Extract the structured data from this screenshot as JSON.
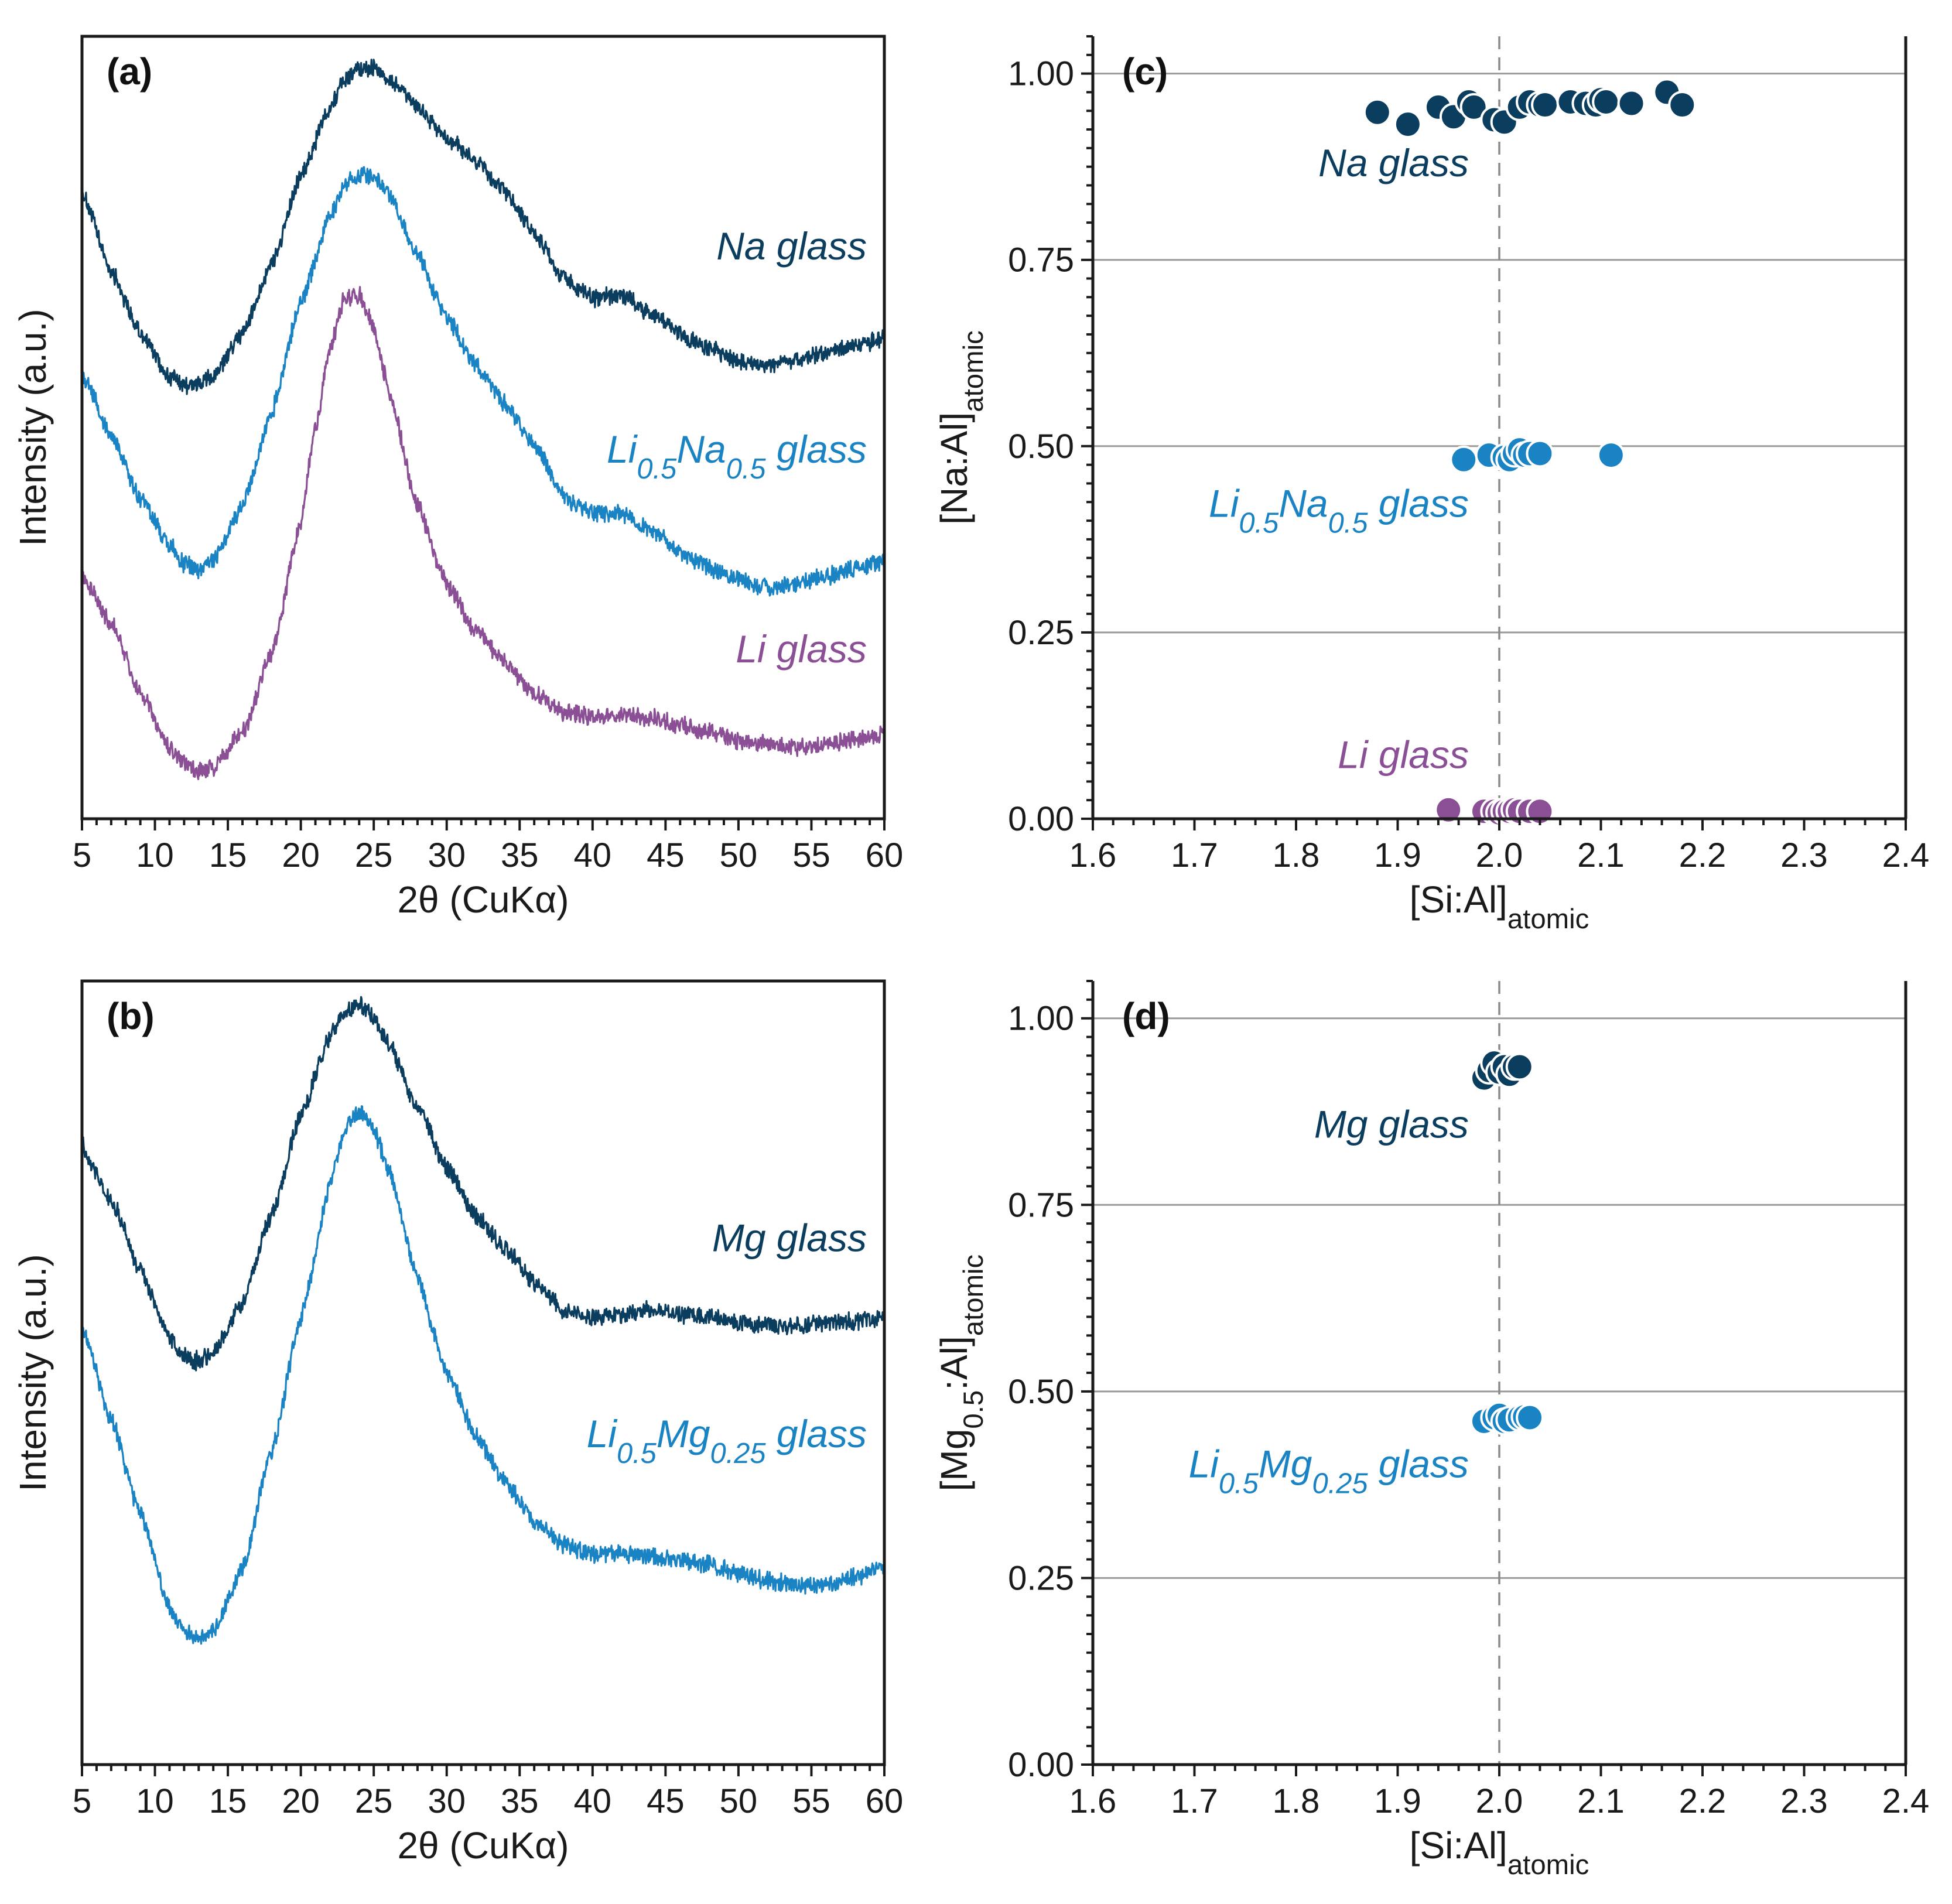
{
  "colors": {
    "dark_navy": "#0b3d5e",
    "mid_blue": "#1a83c4",
    "purple": "#8a4f94"
  },
  "chart_data": [
    {
      "id": "a",
      "panel_label": "(a)",
      "type": "line",
      "xlabel": "2θ (CuKα)",
      "ylabel": "Intensity (a.u.)",
      "xlim": [
        5,
        60
      ],
      "ylim": [
        0,
        1
      ],
      "xticks": [
        5,
        10,
        15,
        20,
        25,
        30,
        35,
        40,
        45,
        50,
        55,
        60
      ],
      "series": [
        {
          "name": "Na glass",
          "color": "#0b3d5e",
          "label_pos": [
            52,
            0.715
          ],
          "label_parts": [
            {
              "t": "Na glass",
              "sub": false
            }
          ],
          "x": [
            5,
            7,
            9,
            11,
            12,
            13,
            14,
            16,
            18,
            20,
            22,
            23,
            24,
            25,
            26,
            28,
            30,
            32,
            34,
            36,
            38,
            40,
            42,
            44,
            46,
            48,
            50,
            52,
            54,
            56,
            58,
            60
          ],
          "values": [
            0.8,
            0.7,
            0.62,
            0.565,
            0.555,
            0.555,
            0.565,
            0.62,
            0.71,
            0.82,
            0.91,
            0.945,
            0.96,
            0.96,
            0.945,
            0.91,
            0.87,
            0.84,
            0.8,
            0.75,
            0.69,
            0.665,
            0.67,
            0.645,
            0.62,
            0.6,
            0.585,
            0.58,
            0.585,
            0.595,
            0.605,
            0.615
          ]
        },
        {
          "name": "Li0.5Na0.5 glass",
          "color": "#1a83c4",
          "label_pos": [
            48,
            0.455
          ],
          "label_parts": [
            {
              "t": "Li",
              "sub": false
            },
            {
              "t": "0.5",
              "sub": true
            },
            {
              "t": "Na",
              "sub": false
            },
            {
              "t": "0.5",
              "sub": true
            },
            {
              "t": " glass",
              "sub": false
            }
          ],
          "x": [
            5,
            7,
            9,
            11,
            12,
            13,
            14,
            16,
            18,
            20,
            22,
            23,
            24,
            25,
            26,
            28,
            30,
            32,
            34,
            36,
            38,
            40,
            42,
            44,
            46,
            48,
            50,
            52,
            54,
            56,
            58,
            60
          ],
          "values": [
            0.57,
            0.49,
            0.41,
            0.35,
            0.325,
            0.32,
            0.33,
            0.4,
            0.52,
            0.66,
            0.77,
            0.81,
            0.825,
            0.82,
            0.8,
            0.72,
            0.64,
            0.58,
            0.53,
            0.48,
            0.41,
            0.39,
            0.39,
            0.37,
            0.34,
            0.32,
            0.305,
            0.295,
            0.3,
            0.31,
            0.32,
            0.33
          ]
        },
        {
          "name": "Li glass",
          "color": "#8a4f94",
          "label_pos": [
            52,
            0.2
          ],
          "label_parts": [
            {
              "t": "Li glass",
              "sub": false
            }
          ],
          "x": [
            5,
            7,
            9,
            11,
            12,
            13,
            14,
            16,
            18,
            20,
            21,
            22,
            23,
            24,
            25,
            26,
            28,
            30,
            32,
            34,
            36,
            38,
            40,
            42,
            44,
            46,
            48,
            50,
            52,
            54,
            56,
            58,
            60
          ],
          "values": [
            0.31,
            0.25,
            0.16,
            0.09,
            0.07,
            0.06,
            0.065,
            0.11,
            0.21,
            0.38,
            0.5,
            0.6,
            0.665,
            0.67,
            0.63,
            0.55,
            0.4,
            0.3,
            0.24,
            0.2,
            0.16,
            0.135,
            0.13,
            0.135,
            0.13,
            0.12,
            0.11,
            0.1,
            0.095,
            0.09,
            0.095,
            0.1,
            0.11
          ]
        }
      ]
    },
    {
      "id": "b",
      "panel_label": "(b)",
      "type": "line",
      "xlabel": "2θ (CuKα)",
      "ylabel": "Intensity (a.u.)",
      "xlim": [
        5,
        60
      ],
      "ylim": [
        0,
        1
      ],
      "xticks": [
        5,
        10,
        15,
        20,
        25,
        30,
        35,
        40,
        45,
        50,
        55,
        60
      ],
      "series": [
        {
          "name": "Mg glass",
          "color": "#0b3d5e",
          "label_pos": [
            52,
            0.655
          ],
          "label_parts": [
            {
              "t": "Mg glass",
              "sub": false
            }
          ],
          "x": [
            5,
            7,
            9,
            11,
            12,
            13,
            14,
            16,
            18,
            20,
            22,
            23,
            24,
            25,
            26,
            28,
            30,
            32,
            34,
            36,
            38,
            40,
            42,
            44,
            46,
            48,
            50,
            52,
            54,
            56,
            58,
            60
          ],
          "values": [
            0.79,
            0.72,
            0.63,
            0.545,
            0.52,
            0.515,
            0.525,
            0.59,
            0.7,
            0.83,
            0.93,
            0.96,
            0.97,
            0.955,
            0.92,
            0.84,
            0.76,
            0.7,
            0.66,
            0.615,
            0.58,
            0.57,
            0.575,
            0.58,
            0.575,
            0.57,
            0.565,
            0.56,
            0.56,
            0.565,
            0.565,
            0.57
          ]
        },
        {
          "name": "Li0.5Mg0.25 glass",
          "color": "#1a83c4",
          "label_pos": [
            48,
            0.405
          ],
          "label_parts": [
            {
              "t": "Li",
              "sub": false
            },
            {
              "t": "0.5",
              "sub": true
            },
            {
              "t": "Mg",
              "sub": false
            },
            {
              "t": "0.25",
              "sub": true
            },
            {
              "t": " glass",
              "sub": false
            }
          ],
          "x": [
            5,
            7,
            9,
            11,
            12,
            13,
            14,
            16,
            18,
            20,
            22,
            23,
            24,
            25,
            26,
            28,
            30,
            32,
            34,
            36,
            38,
            40,
            42,
            44,
            46,
            48,
            50,
            52,
            54,
            56,
            58,
            60
          ],
          "values": [
            0.56,
            0.44,
            0.32,
            0.2,
            0.17,
            0.16,
            0.17,
            0.25,
            0.4,
            0.57,
            0.74,
            0.81,
            0.835,
            0.81,
            0.76,
            0.62,
            0.5,
            0.42,
            0.36,
            0.31,
            0.28,
            0.27,
            0.27,
            0.265,
            0.26,
            0.255,
            0.245,
            0.235,
            0.23,
            0.23,
            0.24,
            0.25
          ]
        }
      ]
    },
    {
      "id": "c",
      "panel_label": "(c)",
      "type": "scatter",
      "xlabel": "[Si:Al]atomic",
      "xlabel_parts": [
        {
          "t": "[Si:Al]",
          "sub": false
        },
        {
          "t": "atomic",
          "sub": true
        }
      ],
      "ylabel": "[Na:Al]atomic",
      "ylabel_parts": [
        {
          "t": "[Na:Al]",
          "sub": false
        },
        {
          "t": "atomic",
          "sub": true
        }
      ],
      "xlim": [
        1.6,
        2.4
      ],
      "ylim": [
        0,
        1.05
      ],
      "xticks": [
        "1.6",
        "1.7",
        "1.8",
        "1.9",
        "2.0",
        "2.1",
        "2.2",
        "2.3",
        "2.4"
      ],
      "yticks": [
        "0.00",
        "0.25",
        "0.50",
        "0.75",
        "1.00"
      ],
      "grid": true,
      "reference_x": 2.0,
      "series": [
        {
          "name": "Na glass",
          "color": "#0b3d5e",
          "label_pos": [
            1.97,
            0.862
          ],
          "label_parts": [
            {
              "t": "Na glass",
              "sub": false
            }
          ],
          "x": [
            1.88,
            1.91,
            1.94,
            1.955,
            1.97,
            1.975,
            1.995,
            2.005,
            2.02,
            2.03,
            2.04,
            2.045,
            2.07,
            2.085,
            2.095,
            2.1,
            2.105,
            2.13,
            2.165,
            2.18
          ],
          "y": [
            0.948,
            0.932,
            0.955,
            0.942,
            0.962,
            0.955,
            0.938,
            0.935,
            0.955,
            0.962,
            0.958,
            0.958,
            0.962,
            0.96,
            0.958,
            0.965,
            0.962,
            0.96,
            0.975,
            0.958
          ]
        },
        {
          "name": "Li0.5Na0.5 glass",
          "color": "#1a83c4",
          "label_pos": [
            1.97,
            0.405
          ],
          "label_parts": [
            {
              "t": "Li",
              "sub": false
            },
            {
              "t": "0.5",
              "sub": true
            },
            {
              "t": "Na",
              "sub": false
            },
            {
              "t": "0.5",
              "sub": true
            },
            {
              "t": " glass",
              "sub": false
            }
          ],
          "x": [
            1.965,
            1.99,
            2.005,
            2.01,
            2.015,
            2.02,
            2.025,
            2.03,
            2.04,
            2.11
          ],
          "y": [
            0.482,
            0.488,
            0.485,
            0.482,
            0.49,
            0.495,
            0.488,
            0.49,
            0.49,
            0.488
          ]
        },
        {
          "name": "Li glass",
          "color": "#8a4f94",
          "label_pos": [
            1.97,
            0.068
          ],
          "label_parts": [
            {
              "t": "Li glass",
              "sub": false
            }
          ],
          "x": [
            1.95,
            1.985,
            1.995,
            2.0,
            2.005,
            2.01,
            2.015,
            2.02,
            2.03,
            2.04
          ],
          "y": [
            0.012,
            0.01,
            0.01,
            0.008,
            0.01,
            0.01,
            0.012,
            0.01,
            0.01,
            0.01
          ]
        }
      ]
    },
    {
      "id": "d",
      "panel_label": "(d)",
      "type": "scatter",
      "xlabel": "[Si:Al]atomic",
      "xlabel_parts": [
        {
          "t": "[Si:Al]",
          "sub": false
        },
        {
          "t": "atomic",
          "sub": true
        }
      ],
      "ylabel": "[Mg0.5:Al]atomic",
      "ylabel_parts": [
        {
          "t": "[Mg",
          "sub": false
        },
        {
          "t": "0.5",
          "sub": true
        },
        {
          "t": ":Al]",
          "sub": false
        },
        {
          "t": "atomic",
          "sub": true
        }
      ],
      "xlim": [
        1.6,
        2.4
      ],
      "ylim": [
        0,
        1.05
      ],
      "xticks": [
        "1.6",
        "1.7",
        "1.8",
        "1.9",
        "2.0",
        "2.1",
        "2.2",
        "2.3",
        "2.4"
      ],
      "yticks": [
        "0.00",
        "0.25",
        "0.50",
        "0.75",
        "1.00"
      ],
      "grid": true,
      "reference_x": 2.0,
      "series": [
        {
          "name": "Mg glass",
          "color": "#0b3d5e",
          "label_pos": [
            1.97,
            0.84
          ],
          "label_parts": [
            {
              "t": "Mg glass",
              "sub": false
            }
          ],
          "x": [
            1.985,
            1.99,
            1.995,
            2.0,
            2.005,
            2.01,
            2.015,
            2.02
          ],
          "y": [
            0.92,
            0.93,
            0.94,
            0.928,
            0.935,
            0.925,
            0.935,
            0.935
          ]
        },
        {
          "name": "Li0.5Mg0.25 glass",
          "color": "#1a83c4",
          "label_pos": [
            1.97,
            0.385
          ],
          "label_parts": [
            {
              "t": "Li",
              "sub": false
            },
            {
              "t": "0.5",
              "sub": true
            },
            {
              "t": "Mg",
              "sub": false
            },
            {
              "t": "0.25",
              "sub": true
            },
            {
              "t": " glass",
              "sub": false
            }
          ],
          "x": [
            1.985,
            1.995,
            2.0,
            2.005,
            2.01,
            2.02,
            2.025,
            2.03
          ],
          "y": [
            0.46,
            0.465,
            0.468,
            0.46,
            0.462,
            0.465,
            0.466,
            0.465
          ]
        }
      ]
    }
  ]
}
